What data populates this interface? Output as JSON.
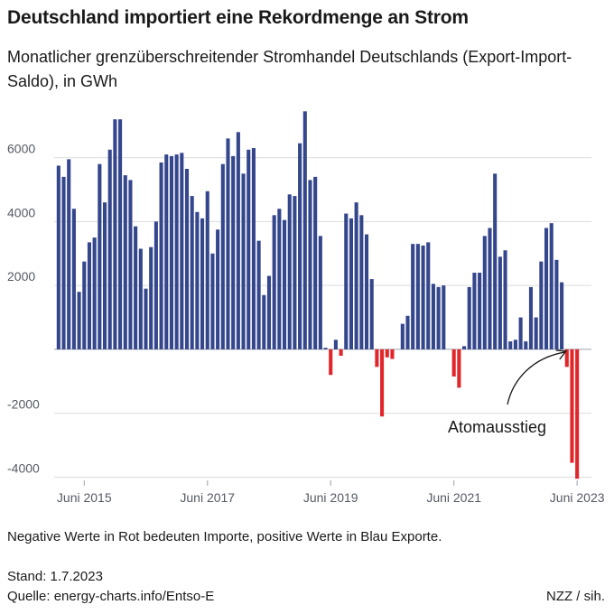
{
  "header": {
    "title": "Deutschland importiert eine Rekordmenge an Strom",
    "subtitle": "Monatlicher grenzüberschreitender Stromhandel Deutschlands (Export-Import-Saldo), in GWh"
  },
  "footer": {
    "note": "Negative Werte in Rot bedeuten Importe, positive Werte in Blau Exporte.",
    "stand": "Stand: 1.7.2023",
    "source": "Quelle: energy-charts.info/Entso-E",
    "credit": "NZZ / sih."
  },
  "colors": {
    "export": "#34468c",
    "import": "#e0262b",
    "grid": "#dcdcdc",
    "axis_text": "#555a64"
  },
  "chart_data": {
    "type": "bar",
    "title": "Deutschland importiert eine Rekordmenge an Strom",
    "subtitle": "Monatlicher grenzüberschreitender Stromhandel Deutschlands (Export-Import-Saldo), in GWh",
    "x_start": "2015-01",
    "x_end": "2023-06",
    "x_ticks": [
      "Juni 2015",
      "Juni 2017",
      "Juni 2019",
      "Juni 2021",
      "Juni 2023"
    ],
    "y_ticks": [
      -4000,
      -2000,
      0,
      2000,
      4000,
      6000
    ],
    "ylim": [
      -4100,
      7600
    ],
    "grid": true,
    "months": [
      "2015-01",
      "2015-02",
      "2015-03",
      "2015-04",
      "2015-05",
      "2015-06",
      "2015-07",
      "2015-08",
      "2015-09",
      "2015-10",
      "2015-11",
      "2015-12",
      "2016-01",
      "2016-02",
      "2016-03",
      "2016-04",
      "2016-05",
      "2016-06",
      "2016-07",
      "2016-08",
      "2016-09",
      "2016-10",
      "2016-11",
      "2016-12",
      "2017-01",
      "2017-02",
      "2017-03",
      "2017-04",
      "2017-05",
      "2017-06",
      "2017-07",
      "2017-08",
      "2017-09",
      "2017-10",
      "2017-11",
      "2017-12",
      "2018-01",
      "2018-02",
      "2018-03",
      "2018-04",
      "2018-05",
      "2018-06",
      "2018-07",
      "2018-08",
      "2018-09",
      "2018-10",
      "2018-11",
      "2018-12",
      "2019-01",
      "2019-02",
      "2019-03",
      "2019-04",
      "2019-05",
      "2019-06",
      "2019-07",
      "2019-08",
      "2019-09",
      "2019-10",
      "2019-11",
      "2019-12",
      "2020-01",
      "2020-02",
      "2020-03",
      "2020-04",
      "2020-05",
      "2020-06",
      "2020-07",
      "2020-08",
      "2020-09",
      "2020-10",
      "2020-11",
      "2020-12",
      "2021-01",
      "2021-02",
      "2021-03",
      "2021-04",
      "2021-05",
      "2021-06",
      "2021-07",
      "2021-08",
      "2021-09",
      "2021-10",
      "2021-11",
      "2021-12",
      "2022-01",
      "2022-02",
      "2022-03",
      "2022-04",
      "2022-05",
      "2022-06",
      "2022-07",
      "2022-08",
      "2022-09",
      "2022-10",
      "2022-11",
      "2022-12",
      "2023-01",
      "2023-02",
      "2023-03",
      "2023-04",
      "2023-05",
      "2023-06"
    ],
    "values": [
      5750,
      5400,
      5950,
      4400,
      1800,
      2750,
      3350,
      3500,
      5800,
      4600,
      6250,
      7200,
      7200,
      5450,
      5300,
      3850,
      3150,
      1900,
      3200,
      4000,
      5850,
      6100,
      6050,
      6100,
      6150,
      5650,
      4800,
      4300,
      4100,
      4950,
      3000,
      3750,
      5800,
      6600,
      6050,
      6800,
      5500,
      6250,
      6300,
      3400,
      1700,
      2300,
      4200,
      4400,
      4050,
      4850,
      4800,
      6450,
      7450,
      5300,
      5400,
      3550,
      50,
      -800,
      300,
      -200,
      4250,
      4100,
      4600,
      4200,
      3600,
      2200,
      -550,
      -2100,
      -250,
      -300,
      0,
      800,
      1050,
      3300,
      3300,
      3250,
      3350,
      2050,
      1950,
      2000,
      0,
      -850,
      -1200,
      100,
      1950,
      2400,
      2400,
      3550,
      3800,
      5500,
      2900,
      3100,
      250,
      300,
      1000,
      250,
      1950,
      1000,
      2750,
      3800,
      3950,
      2800,
      2100,
      -550,
      -3550,
      -4050
    ],
    "annotations": [
      {
        "label": "Atomausstieg",
        "month": "2023-04"
      }
    ]
  }
}
